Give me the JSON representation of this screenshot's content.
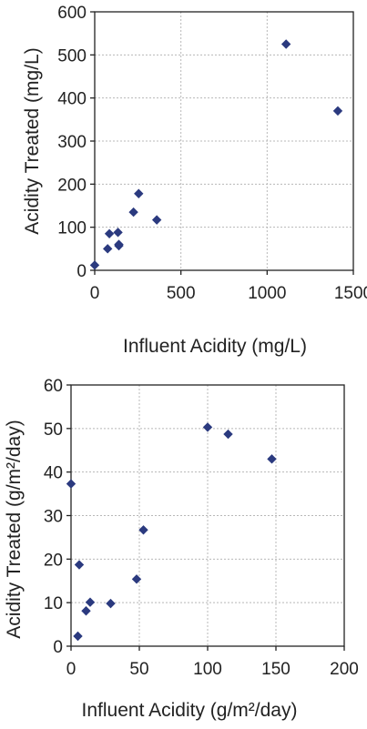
{
  "chart_data": [
    {
      "type": "scatter",
      "xlabel": "Influent Acidity (mg/L)",
      "ylabel": "Acidity Treated (mg/L)",
      "xlim": [
        0,
        1500
      ],
      "ylim": [
        0,
        600
      ],
      "x_ticks": [
        "0",
        "500",
        "1000",
        "1500"
      ],
      "y_ticks": [
        "0",
        "100",
        "200",
        "300",
        "400",
        "500",
        "600"
      ],
      "grid": true,
      "marker": "diamond",
      "marker_color": "#2b3a7f",
      "series": [
        {
          "points": [
            {
              "x": 0,
              "y": 12
            },
            {
              "x": 75,
              "y": 50
            },
            {
              "x": 85,
              "y": 85
            },
            {
              "x": 135,
              "y": 88
            },
            {
              "x": 140,
              "y": 60
            },
            {
              "x": 140,
              "y": 57
            },
            {
              "x": 225,
              "y": 135
            },
            {
              "x": 255,
              "y": 178
            },
            {
              "x": 360,
              "y": 117
            },
            {
              "x": 1110,
              "y": 525
            },
            {
              "x": 1410,
              "y": 370
            }
          ]
        }
      ]
    },
    {
      "type": "scatter",
      "xlabel": "Influent Acidity (g/m²/day)",
      "ylabel": "Acidity Treated (g/m²/day)",
      "xlim": [
        0,
        200
      ],
      "ylim": [
        0,
        60
      ],
      "x_ticks": [
        "0",
        "50",
        "100",
        "150",
        "200"
      ],
      "y_ticks": [
        "0",
        "10",
        "20",
        "30",
        "40",
        "50",
        "60"
      ],
      "grid": true,
      "marker": "diamond",
      "marker_color": "#2b3a7f",
      "series": [
        {
          "points": [
            {
              "x": 0,
              "y": 37.3
            },
            {
              "x": 5,
              "y": 2.3
            },
            {
              "x": 6,
              "y": 18.7
            },
            {
              "x": 11,
              "y": 8.1
            },
            {
              "x": 14,
              "y": 10.1
            },
            {
              "x": 29,
              "y": 9.8
            },
            {
              "x": 48,
              "y": 15.4
            },
            {
              "x": 53,
              "y": 26.7
            },
            {
              "x": 100,
              "y": 50.3
            },
            {
              "x": 115,
              "y": 48.7
            },
            {
              "x": 147,
              "y": 43
            }
          ]
        }
      ]
    }
  ]
}
